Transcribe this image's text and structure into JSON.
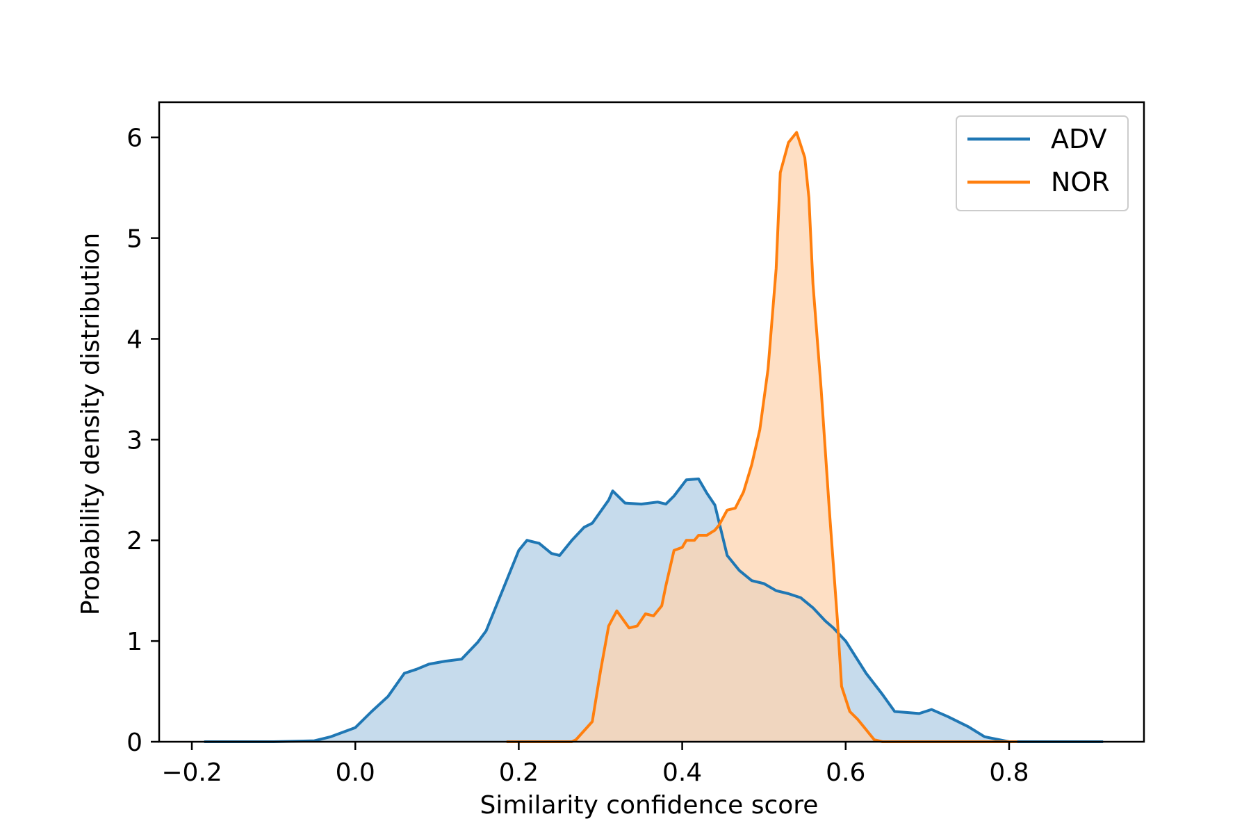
{
  "chart_data": {
    "type": "area",
    "title": "",
    "xlabel": "Similarity confidence score",
    "ylabel": "Probability density distribution",
    "xlim": [
      -0.24,
      0.965
    ],
    "ylim": [
      0,
      6.35
    ],
    "x_ticks": [
      -0.2,
      0.0,
      0.2,
      0.4,
      0.6,
      0.8
    ],
    "x_tick_labels": [
      "−0.2",
      "0.0",
      "0.2",
      "0.4",
      "0.6",
      "0.8"
    ],
    "y_ticks": [
      0,
      1,
      2,
      3,
      4,
      5,
      6
    ],
    "y_tick_labels": [
      "0",
      "1",
      "2",
      "3",
      "4",
      "5",
      "6"
    ],
    "grid": false,
    "legend_position": "top-right",
    "series": [
      {
        "name": "ADV",
        "color": "#1f77b4",
        "fill_color": "#c6dbec",
        "x": [
          -0.185,
          -0.1,
          -0.05,
          -0.03,
          0.0,
          0.02,
          0.04,
          0.06,
          0.075,
          0.09,
          0.11,
          0.13,
          0.15,
          0.16,
          0.18,
          0.2,
          0.21,
          0.225,
          0.24,
          0.25,
          0.265,
          0.28,
          0.29,
          0.31,
          0.315,
          0.33,
          0.35,
          0.37,
          0.38,
          0.39,
          0.405,
          0.42,
          0.43,
          0.44,
          0.455,
          0.47,
          0.485,
          0.5,
          0.515,
          0.53,
          0.545,
          0.56,
          0.575,
          0.585,
          0.6,
          0.625,
          0.645,
          0.66,
          0.69,
          0.705,
          0.725,
          0.75,
          0.77,
          0.8,
          0.915
        ],
        "y": [
          0.0,
          0.0,
          0.01,
          0.05,
          0.14,
          0.3,
          0.45,
          0.68,
          0.72,
          0.77,
          0.8,
          0.82,
          0.99,
          1.1,
          1.5,
          1.9,
          2.0,
          1.97,
          1.87,
          1.85,
          2.0,
          2.13,
          2.17,
          2.4,
          2.49,
          2.37,
          2.36,
          2.38,
          2.36,
          2.44,
          2.6,
          2.61,
          2.47,
          2.35,
          1.85,
          1.7,
          1.6,
          1.57,
          1.5,
          1.47,
          1.43,
          1.33,
          1.2,
          1.13,
          1.0,
          0.68,
          0.47,
          0.3,
          0.28,
          0.32,
          0.25,
          0.15,
          0.05,
          0.0,
          0.0
        ]
      },
      {
        "name": "NOR",
        "color": "#ff7f0e",
        "fill_color": "#fdd4b0",
        "x": [
          0.185,
          0.265,
          0.27,
          0.29,
          0.3,
          0.31,
          0.32,
          0.335,
          0.345,
          0.355,
          0.365,
          0.375,
          0.38,
          0.39,
          0.4,
          0.405,
          0.415,
          0.42,
          0.43,
          0.44,
          0.445,
          0.455,
          0.465,
          0.475,
          0.485,
          0.495,
          0.505,
          0.515,
          0.52,
          0.53,
          0.54,
          0.55,
          0.555,
          0.56,
          0.57,
          0.58,
          0.59,
          0.595,
          0.605,
          0.615,
          0.625,
          0.635,
          0.645,
          0.655,
          0.665,
          0.675,
          0.69,
          0.7,
          0.715,
          0.73,
          0.81
        ],
        "y": [
          0.0,
          0.0,
          0.02,
          0.2,
          0.7,
          1.15,
          1.3,
          1.13,
          1.15,
          1.27,
          1.25,
          1.35,
          1.55,
          1.9,
          1.93,
          2.0,
          2.0,
          2.05,
          2.05,
          2.1,
          2.15,
          2.3,
          2.32,
          2.48,
          2.75,
          3.1,
          3.7,
          4.7,
          5.65,
          5.95,
          6.05,
          5.8,
          5.4,
          4.55,
          3.5,
          2.3,
          1.2,
          0.55,
          0.3,
          0.22,
          0.12,
          0.02,
          0.0,
          0.0,
          0.0,
          0.0,
          0.0,
          0.0,
          0.0,
          0.0,
          0.0
        ]
      }
    ]
  }
}
